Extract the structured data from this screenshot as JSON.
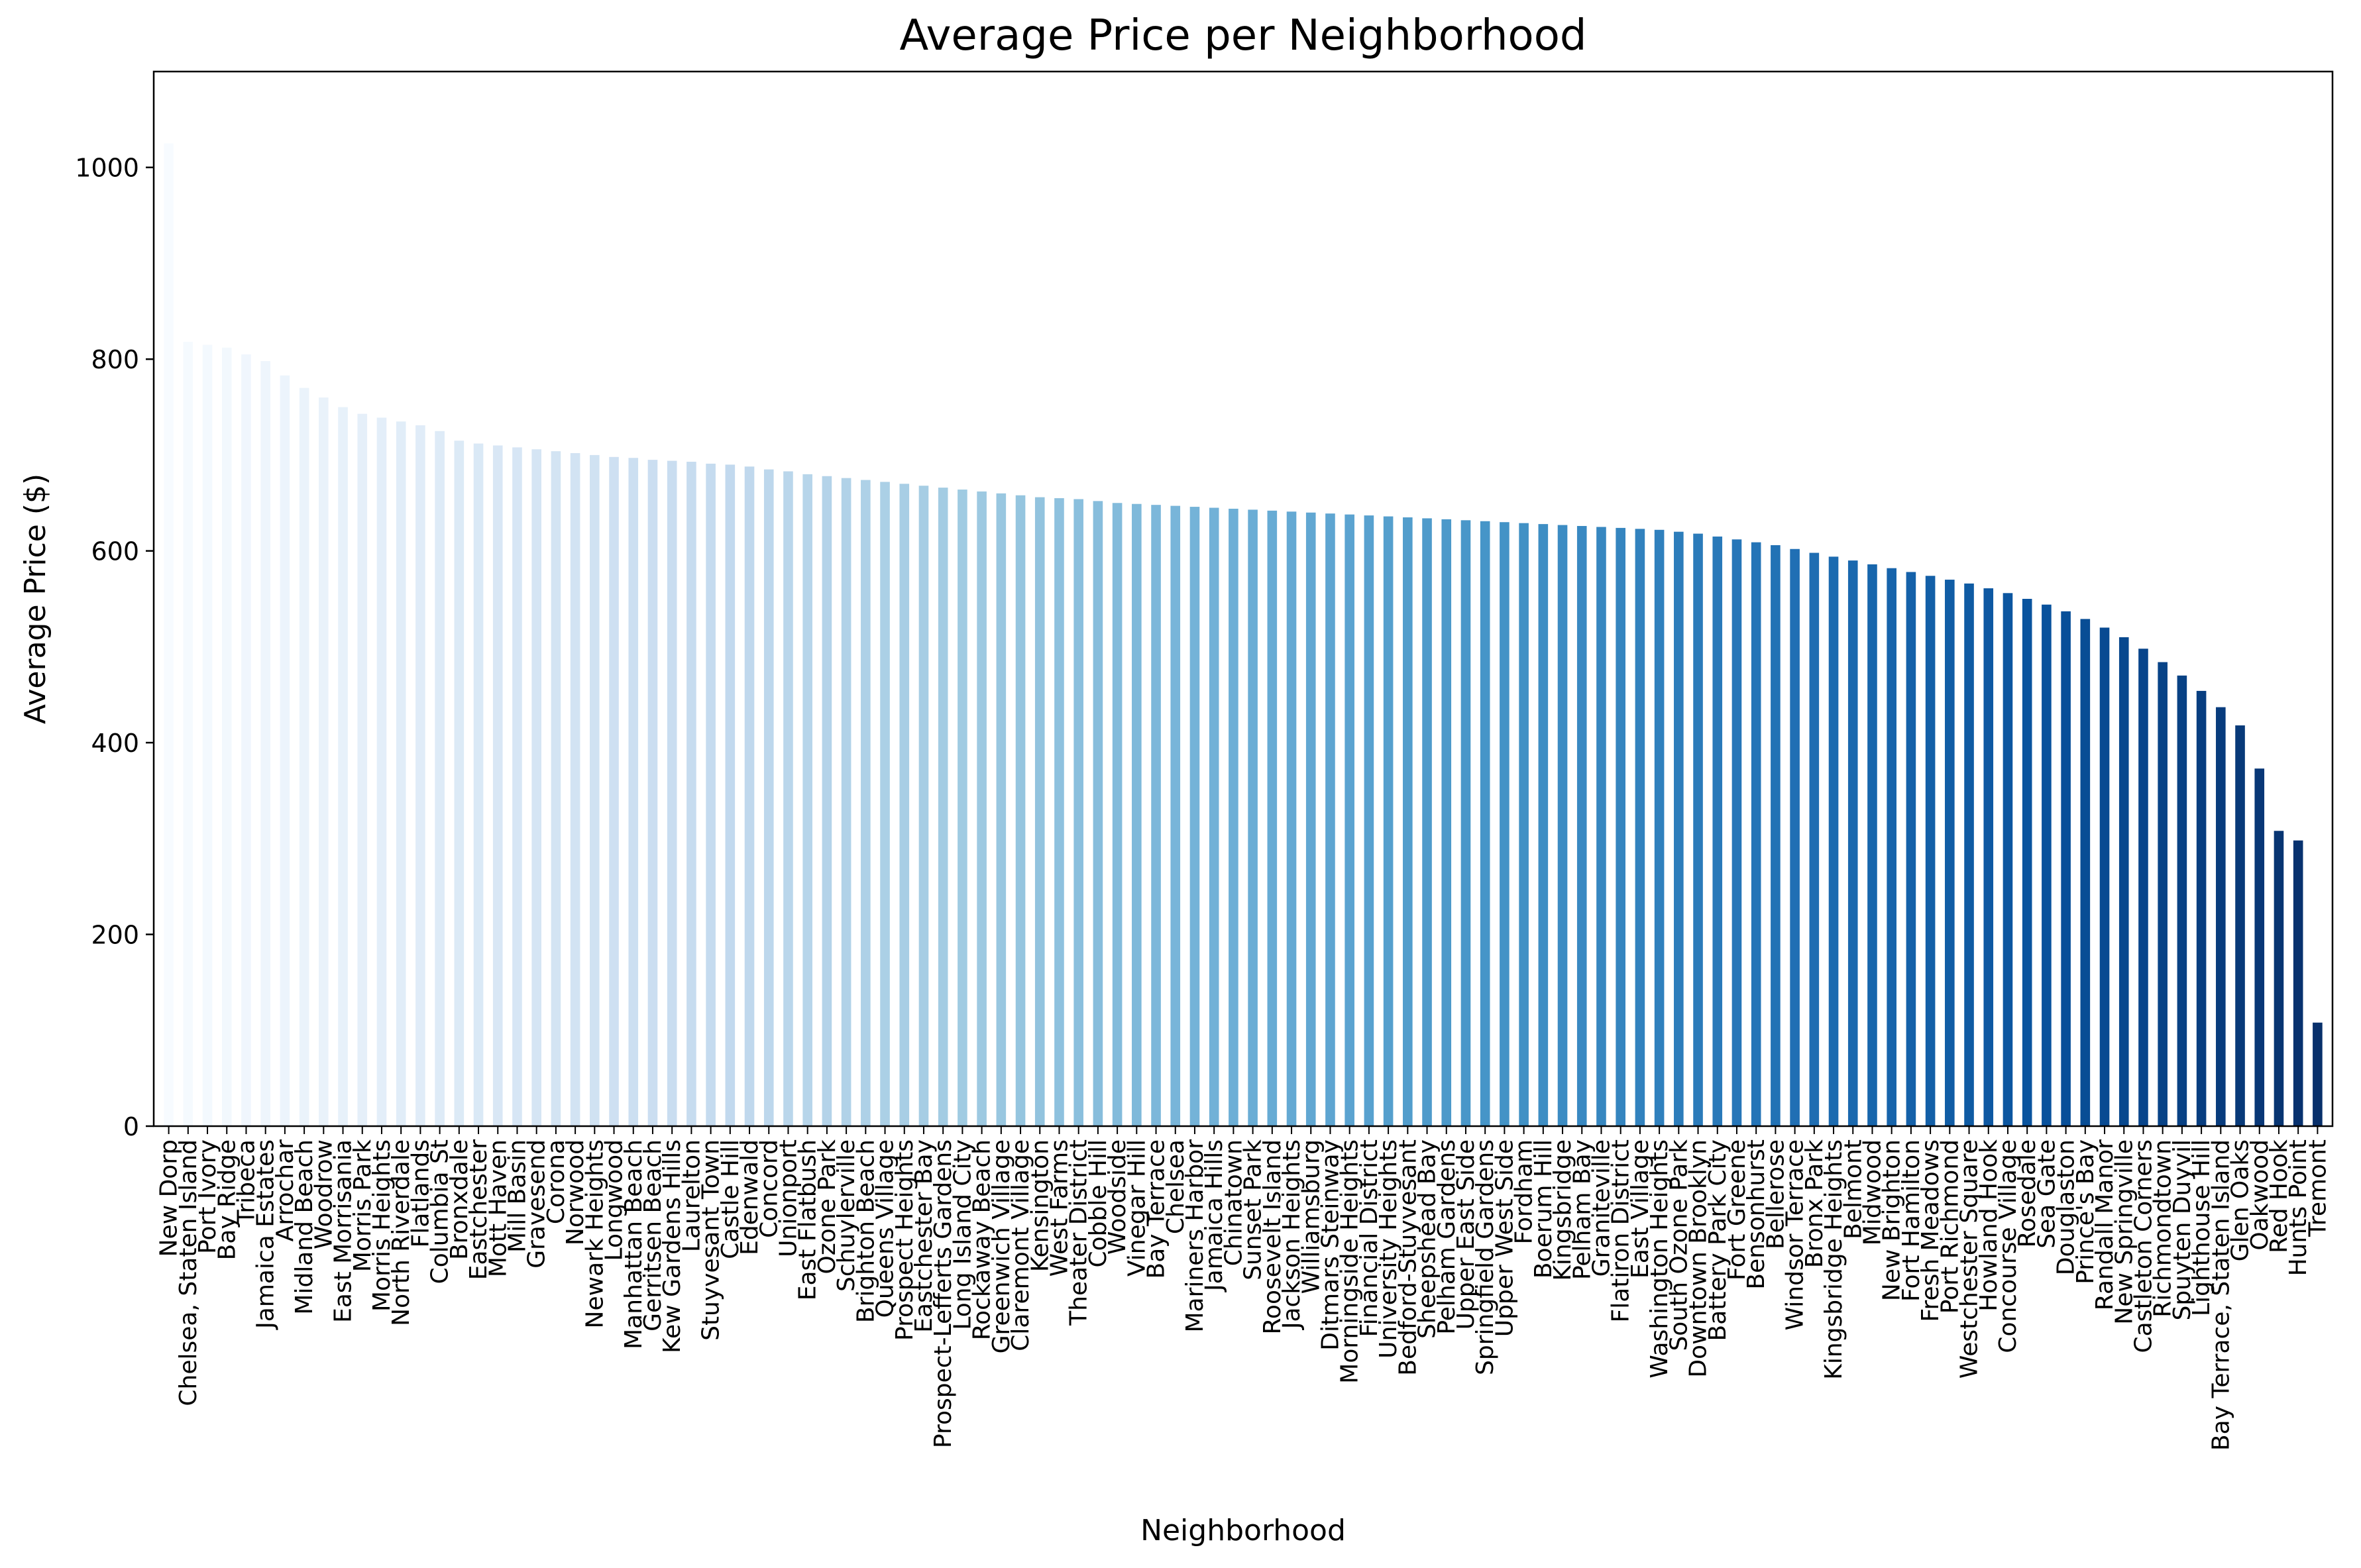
{
  "chart_data": {
    "type": "bar",
    "title": "Average Price per Neighborhood",
    "xlabel": "Neighborhood",
    "ylabel": "Average Price ($)",
    "ylim": [
      0,
      1100
    ],
    "yticks": [
      0,
      200,
      400,
      600,
      800,
      1000
    ],
    "grid": false,
    "legend": "none",
    "colormap": [
      "#f7fbff",
      "#deebf7",
      "#c6dbef",
      "#9ecae1",
      "#6baed6",
      "#4292c6",
      "#2171b5",
      "#08519c",
      "#08306b"
    ],
    "categories": [
      "New Dorp",
      "Chelsea, Staten Island",
      "Port Ivory",
      "Bay Ridge",
      "Tribeca",
      "Jamaica Estates",
      "Arrochar",
      "Midland Beach",
      "Woodrow",
      "East Morrisania",
      "Morris Park",
      "Morris Heights",
      "North Riverdale",
      "Flatlands",
      "Columbia St",
      "Bronxdale",
      "Eastchester",
      "Mott Haven",
      "Mill Basin",
      "Gravesend",
      "Corona",
      "Norwood",
      "Newark Heights",
      "Longwood",
      "Manhattan Beach",
      "Gerritsen Beach",
      "Kew Gardens Hills",
      "Laurelton",
      "Stuyvesant Town",
      "Castle Hill",
      "Edenwald",
      "Concord",
      "Unionport",
      "East Flatbush",
      "Ozone Park",
      "Schuylerville",
      "Brighton Beach",
      "Queens Village",
      "Prospect Heights",
      "Eastchester Bay",
      "Prospect-Lefferts Gardens",
      "Long Island City",
      "Rockaway Beach",
      "Greenwich Village",
      "Claremont Village",
      "Kensington",
      "West Farms",
      "Theater District",
      "Cobble Hill",
      "Woodside",
      "Vinegar Hill",
      "Bay Terrace",
      "Chelsea",
      "Mariners Harbor",
      "Jamaica Hills",
      "Chinatown",
      "Sunset Park",
      "Roosevelt Island",
      "Jackson Heights",
      "Williamsburg",
      "Ditmars Steinway",
      "Morningside Heights",
      "Financial District",
      "University Heights",
      "Bedford-Stuyvesant",
      "Sheepshead Bay",
      "Pelham Gardens",
      "Upper East Side",
      "Springfield Gardens",
      "Upper West Side",
      "Fordham",
      "Boerum Hill",
      "Kingsbridge",
      "Pelham Bay",
      "Graniteville",
      "Flatiron District",
      "East Village",
      "Washington Heights",
      "South Ozone Park",
      "Downtown Brooklyn",
      "Battery Park City",
      "Fort Greene",
      "Bensonhurst",
      "Bellerose",
      "Windsor Terrace",
      "Bronx Park",
      "Kingsbridge Heights",
      "Belmont",
      "Midwood",
      "New Brighton",
      "Fort Hamilton",
      "Fresh Meadows",
      "Port Richmond",
      "Westchester Square",
      "Howland Hook",
      "Concourse Village",
      "Rosedale",
      "Sea Gate",
      "Douglaston",
      "Prince's Bay",
      "Randall Manor",
      "New Springville",
      "Castleton Corners",
      "Richmondtown",
      "Spuyten Duyvil",
      "Lighthouse Hill",
      "Bay Terrace, Staten Island",
      "Glen Oaks",
      "Oakwood",
      "Red Hook",
      "Hunts Point",
      "Tremont"
    ],
    "values": [
      1025,
      818,
      815,
      812,
      805,
      798,
      783,
      770,
      760,
      750,
      743,
      739,
      735,
      731,
      725,
      715,
      712,
      710,
      708,
      706,
      704,
      702,
      700,
      698,
      697,
      695,
      694,
      693,
      691,
      690,
      688,
      685,
      683,
      680,
      678,
      676,
      674,
      672,
      670,
      668,
      666,
      664,
      662,
      660,
      658,
      656,
      655,
      654,
      652,
      650,
      649,
      648,
      647,
      646,
      645,
      644,
      643,
      642,
      641,
      640,
      639,
      638,
      637,
      636,
      635,
      634,
      633,
      632,
      631,
      630,
      629,
      628,
      627,
      626,
      625,
      624,
      623,
      622,
      620,
      618,
      615,
      612,
      609,
      606,
      602,
      598,
      594,
      590,
      586,
      582,
      578,
      574,
      570,
      566,
      561,
      556,
      550,
      544,
      537,
      529,
      520,
      510,
      498,
      484,
      470,
      454,
      437,
      418,
      373,
      308,
      298,
      108
    ]
  }
}
